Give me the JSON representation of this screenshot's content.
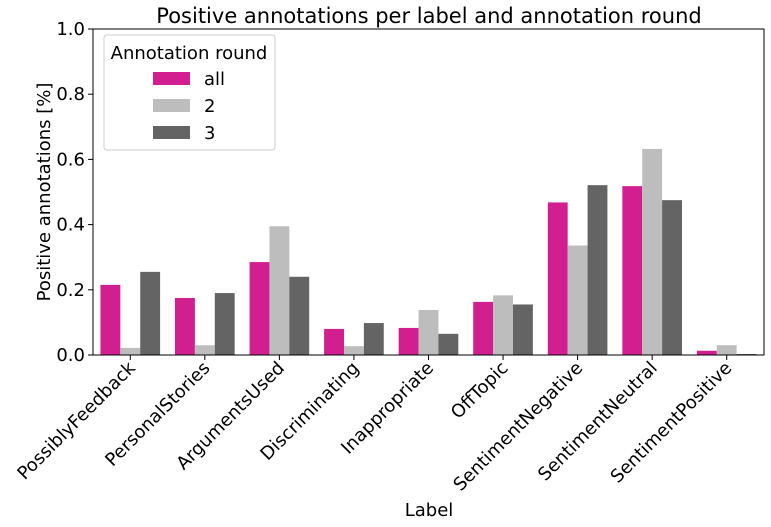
{
  "chart_data": {
    "type": "bar",
    "title": "Positive annotations per label and annotation round",
    "xlabel": "Label",
    "ylabel": "Positive annotations [%]",
    "ylim": [
      0,
      1.0
    ],
    "yticks": [
      "0.0",
      "0.2",
      "0.4",
      "0.6",
      "0.8",
      "1.0"
    ],
    "grid": false,
    "legend": {
      "title": "Annotation round",
      "position": "top-left"
    },
    "categories": [
      "PossiblyFeedback",
      "PersonalStories",
      "ArgumentsUsed",
      "Discriminating",
      "Inappropriate",
      "OffTopic",
      "SentimentNegative",
      "SentimentNeutral",
      "SentimentPositive"
    ],
    "series": [
      {
        "name": "all",
        "color": "#d11f8f",
        "values": [
          0.215,
          0.175,
          0.285,
          0.08,
          0.083,
          0.163,
          0.468,
          0.518,
          0.013
        ]
      },
      {
        "name": "2",
        "color": "#bdbdbd",
        "values": [
          0.022,
          0.03,
          0.395,
          0.027,
          0.138,
          0.183,
          0.336,
          0.632,
          0.03
        ]
      },
      {
        "name": "3",
        "color": "#646464",
        "values": [
          0.255,
          0.19,
          0.24,
          0.098,
          0.065,
          0.155,
          0.521,
          0.475,
          0.003
        ]
      }
    ]
  }
}
